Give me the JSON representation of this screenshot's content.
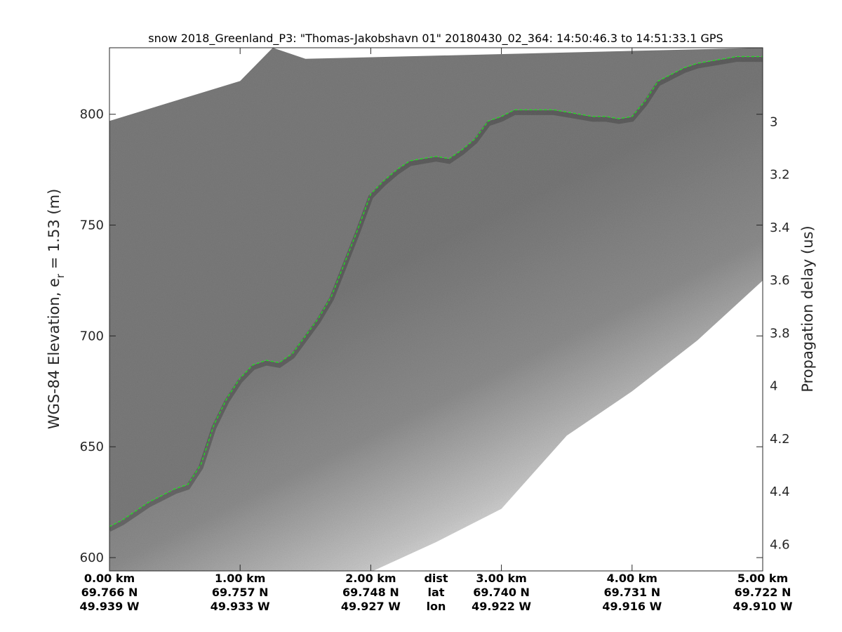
{
  "title": "snow 2018_Greenland_P3: \"Thomas-Jakobshavn 01\"  20180430_02_364: 14:50:46.3 to 14:51:33.1 GPS",
  "colors": {
    "surface_line": "#22dd22",
    "echogram_dark": "#6b6b6b",
    "echogram_light": "#eeeeee",
    "axis": "#262626"
  },
  "chart_data": {
    "type": "heatmap",
    "title": "snow 2018_Greenland_P3: \"Thomas-Jakobshavn 01\"  20180430_02_364: 14:50:46.3 to 14:51:33.1 GPS",
    "xlabel": "",
    "ylabel": "WGS-84 Elevation, e_r = 1.53 (m)",
    "ylabel_parts": {
      "main": "WGS-84 Elevation, e",
      "subscript": "r",
      "rest": " = 1.53 (m)"
    },
    "y2label": "Propagation delay (us)",
    "xlim": [
      0,
      5
    ],
    "ylim": [
      594,
      830
    ],
    "y2lim": [
      2.72,
      4.7
    ],
    "y2_reversed": true,
    "grid": false,
    "yticks": [
      600,
      650,
      700,
      750,
      800
    ],
    "y2ticks": [
      "3",
      "3.2",
      "3.4",
      "3.6",
      "3.8",
      "4",
      "4.2",
      "4.4",
      "4.6"
    ],
    "y2tick_values": [
      3.0,
      3.2,
      3.4,
      3.6,
      3.8,
      4.0,
      4.2,
      4.4,
      4.6
    ],
    "bottom_rows": [
      {
        "label": "dist",
        "values": [
          "0.00 km",
          "1.00 km",
          "2.00 km",
          "3.00 km",
          "4.00 km",
          "5.00 km"
        ]
      },
      {
        "label": "lat",
        "values": [
          "69.766 N",
          "69.757 N",
          "69.748 N",
          "69.740 N",
          "69.731 N",
          "69.722 N"
        ]
      },
      {
        "label": "lon",
        "values": [
          "49.939 W",
          "49.933 W",
          "49.927 W",
          "49.922 W",
          "49.916 W",
          "49.910 W"
        ]
      }
    ],
    "bottom_tick_positions_km": [
      0,
      1,
      2,
      3,
      4,
      5
    ],
    "surface_pick": {
      "x_km": [
        0,
        0.1,
        0.2,
        0.3,
        0.4,
        0.5,
        0.6,
        0.7,
        0.8,
        0.9,
        1.0,
        1.05,
        1.1,
        1.2,
        1.3,
        1.4,
        1.5,
        1.6,
        1.7,
        1.8,
        1.9,
        2.0,
        2.1,
        2.2,
        2.3,
        2.4,
        2.5,
        2.6,
        2.7,
        2.8,
        2.9,
        3.0,
        3.1,
        3.2,
        3.3,
        3.4,
        3.5,
        3.6,
        3.7,
        3.8,
        3.9,
        4.0,
        4.1,
        4.2,
        4.3,
        4.4,
        4.5,
        4.6,
        4.7,
        4.8,
        4.9,
        5.0
      ],
      "elev_m": [
        614,
        617,
        621,
        625,
        628,
        631,
        633,
        642,
        660,
        672,
        681,
        684,
        687,
        689,
        688,
        692,
        700,
        708,
        718,
        733,
        748,
        764,
        770,
        775,
        779,
        780,
        781,
        780,
        784,
        789,
        797,
        799,
        802,
        802,
        802,
        802,
        801,
        800,
        799,
        799,
        798,
        799,
        806,
        815,
        818,
        821,
        823,
        824,
        825,
        826,
        826,
        826
      ]
    },
    "data_top_edge": {
      "x_km": [
        0,
        0.5,
        1.0,
        1.5,
        1.25,
        5.0
      ],
      "elev_m": [
        797,
        806,
        815,
        825,
        830,
        830
      ]
    },
    "data_bottom_edge": {
      "x_km": [
        0,
        0.5,
        1.0,
        1.5,
        1.9,
        2.5,
        3.0,
        3.5,
        4.0,
        4.5,
        5.0
      ],
      "elev_m": [
        594,
        594,
        594,
        594,
        594,
        607,
        622,
        655,
        675,
        698,
        725
      ]
    }
  }
}
